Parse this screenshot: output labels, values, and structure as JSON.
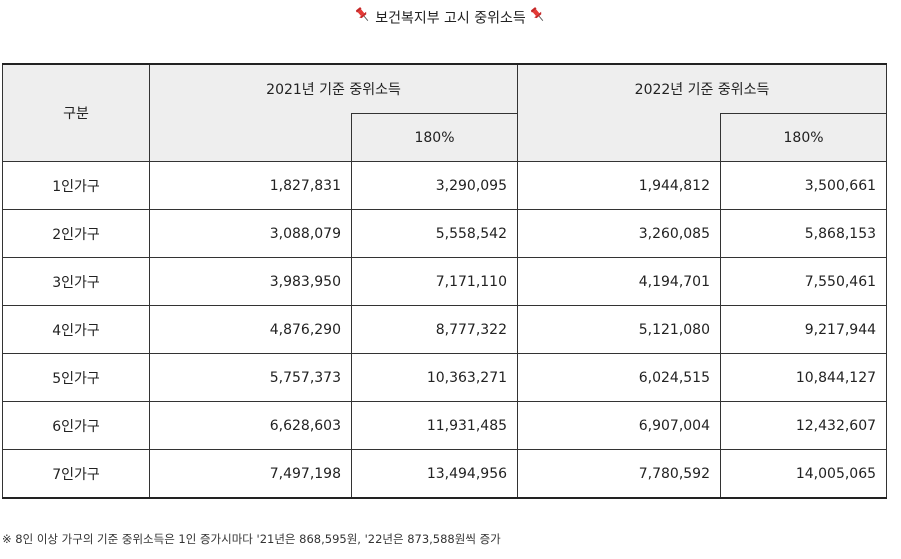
{
  "title": "보건복지부 고시 중위소득",
  "header": {
    "group": "구분",
    "y2021": "2021년 기준 중위소득",
    "y2022": "2022년 기준 중위소득",
    "pct2021": "180%",
    "pct2022": "180%"
  },
  "rows": [
    {
      "label": "1인가구",
      "m2021": "1,827,831",
      "p2021": "3,290,095",
      "m2022": "1,944,812",
      "p2022": "3,500,661"
    },
    {
      "label": "2인가구",
      "m2021": "3,088,079",
      "p2021": "5,558,542",
      "m2022": "3,260,085",
      "p2022": "5,868,153"
    },
    {
      "label": "3인가구",
      "m2021": "3,983,950",
      "p2021": "7,171,110",
      "m2022": "4,194,701",
      "p2022": "7,550,461"
    },
    {
      "label": "4인가구",
      "m2021": "4,876,290",
      "p2021": "8,777,322",
      "m2022": "5,121,080",
      "p2022": "9,217,944"
    },
    {
      "label": "5인가구",
      "m2021": "5,757,373",
      "p2021": "10,363,271",
      "m2022": "6,024,515",
      "p2022": "10,844,127"
    },
    {
      "label": "6인가구",
      "m2021": "6,628,603",
      "p2021": "11,931,485",
      "m2022": "6,907,004",
      "p2022": "12,432,607"
    },
    {
      "label": "7인가구",
      "m2021": "7,497,198",
      "p2021": "13,494,956",
      "m2022": "7,780,592",
      "p2022": "14,005,065"
    }
  ],
  "note": "※ 8인 이상 가구의 기준 중위소득은 1인 증가시마다 '21년은 868,595원, '22년은 873,588원씩 증가",
  "icons": {
    "pin": "pushpin-icon"
  },
  "colors": {
    "pin": "#d32f2f",
    "header_bg": "#eeeeee"
  }
}
